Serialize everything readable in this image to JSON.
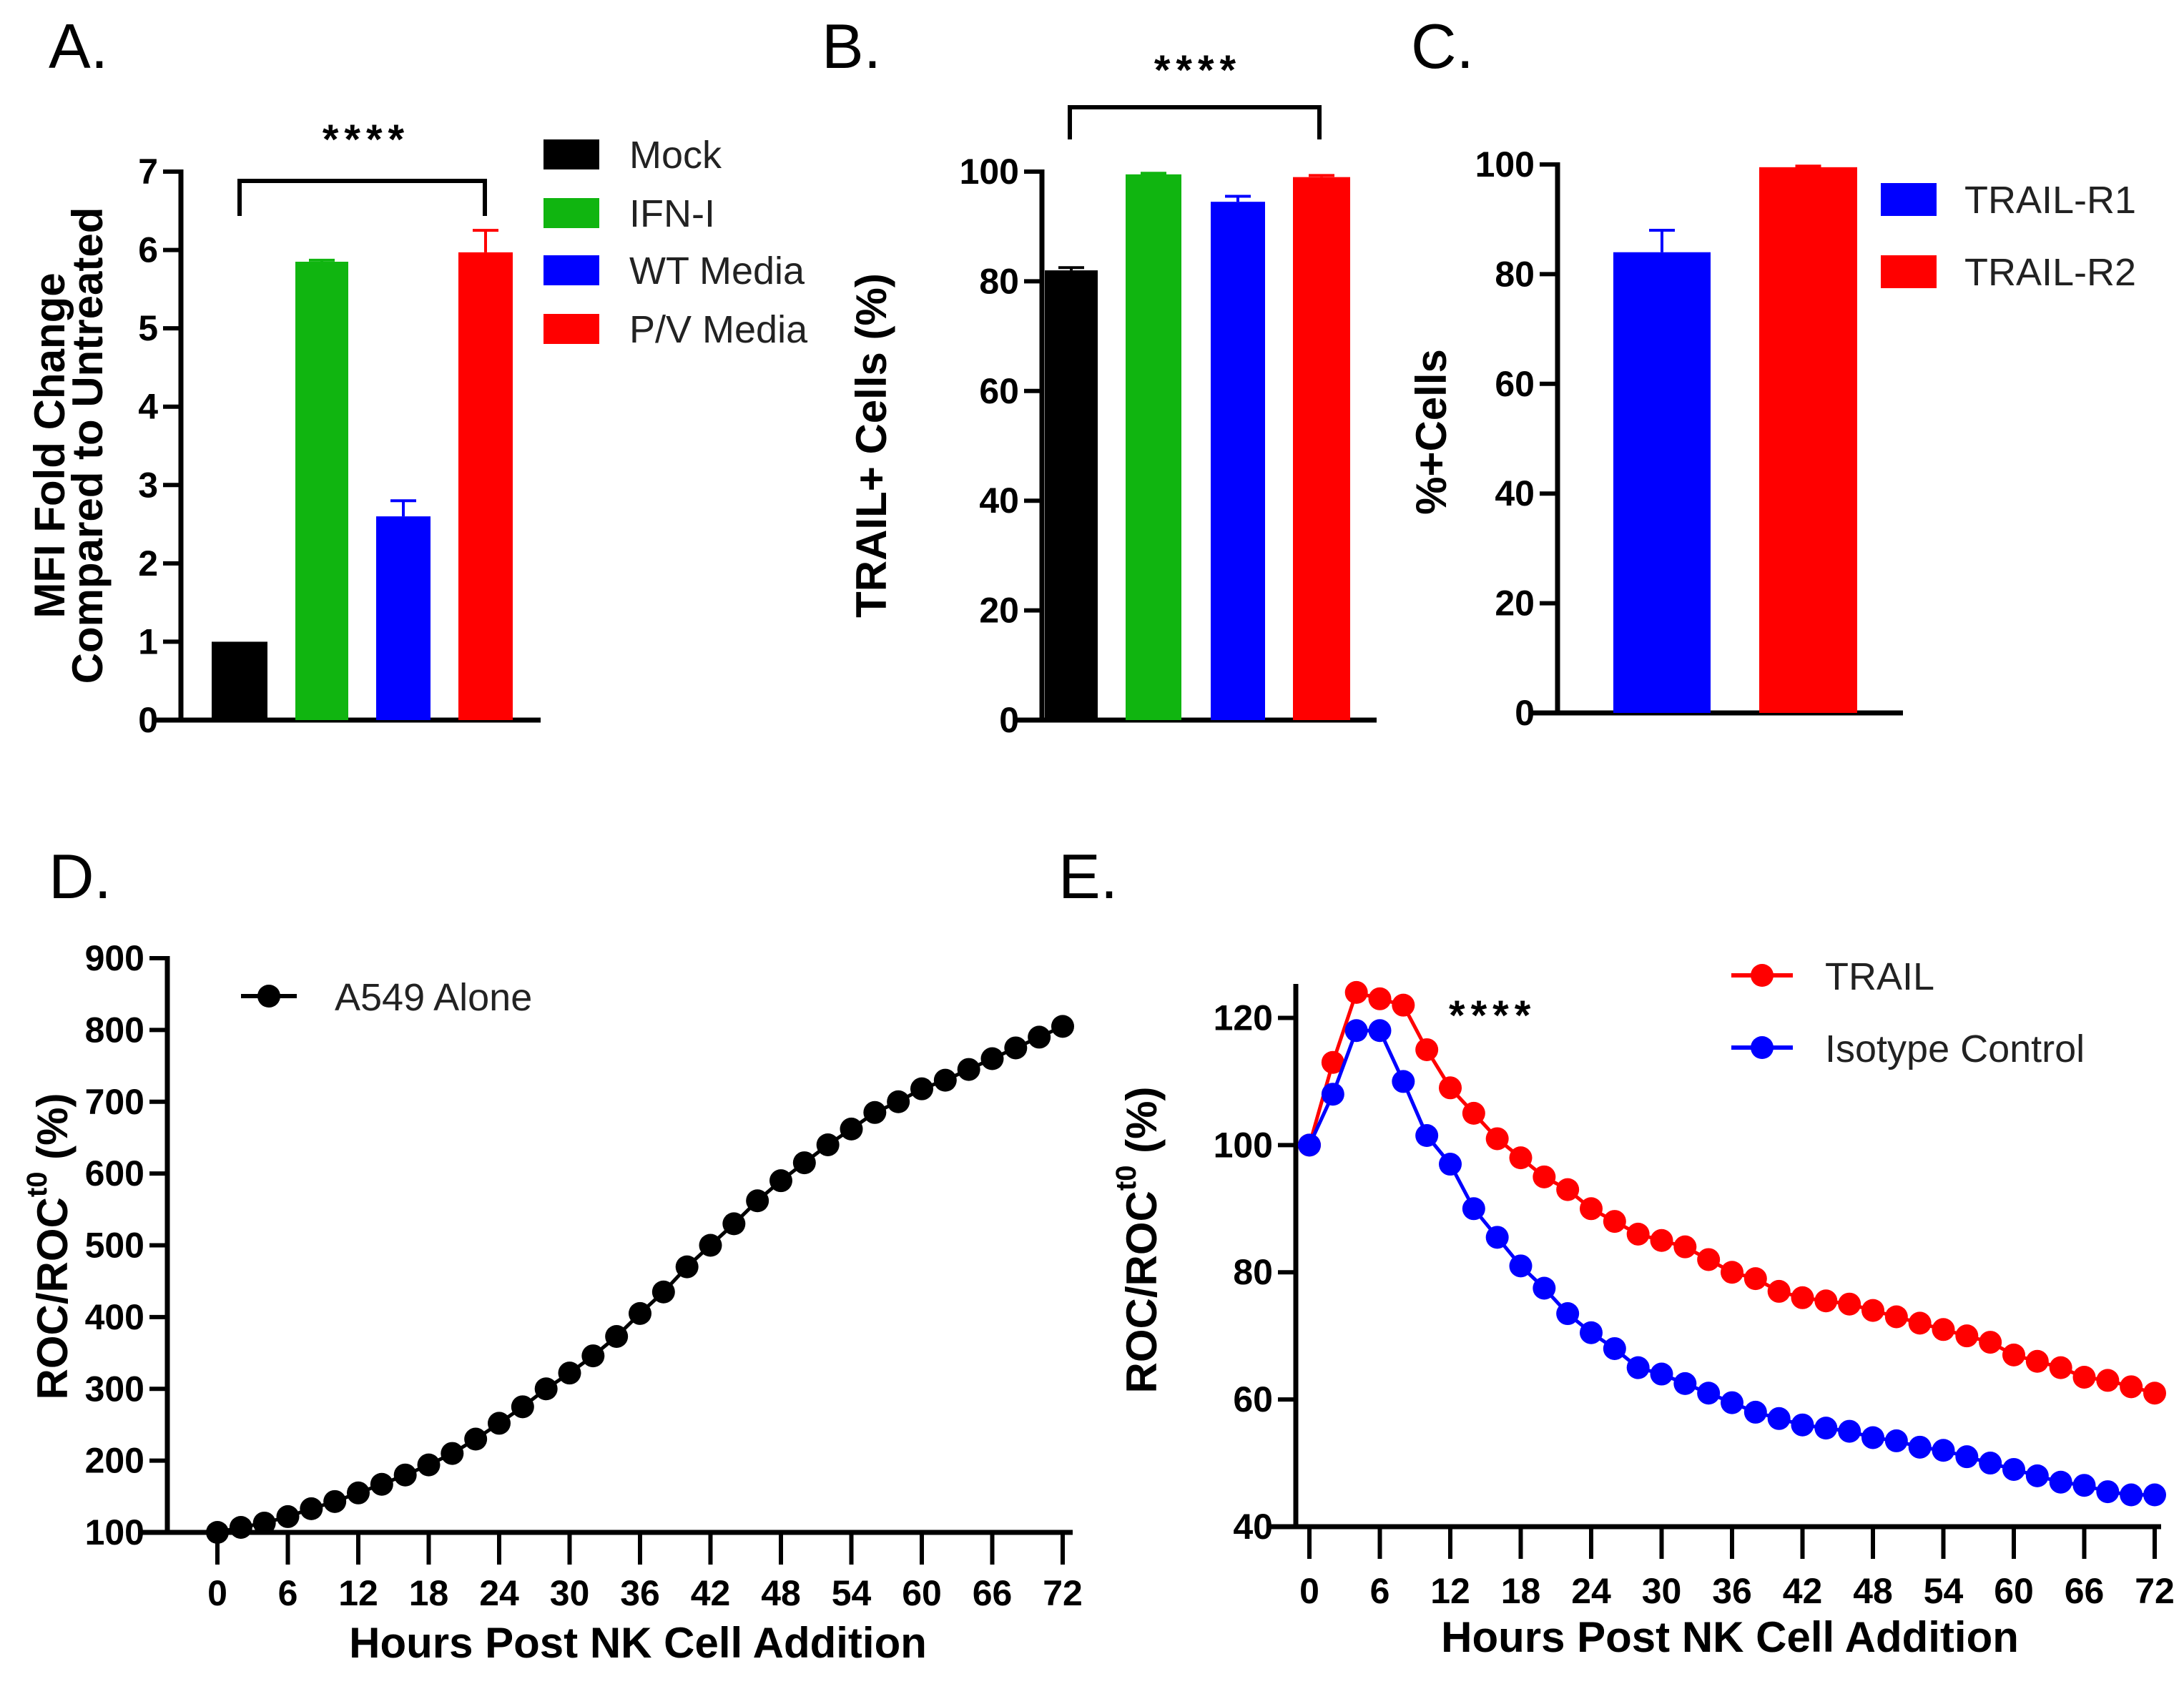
{
  "chart_data": [
    {
      "panel": "A.",
      "type": "bar",
      "categories": [
        "Mock",
        "IFN-I",
        "WT Media",
        "P/V Media"
      ],
      "values": [
        1.0,
        5.85,
        2.6,
        5.97
      ],
      "errors": [
        0,
        0.02,
        0.2,
        0.28
      ],
      "colors": [
        "#000000",
        "#10b510",
        "#0000ff",
        "#ff0000"
      ],
      "ylabel": [
        "MFI Fold Change",
        "Compared to Untreated"
      ],
      "ylim": [
        0,
        7
      ],
      "yticks": [
        "0",
        "1",
        "2",
        "3",
        "4",
        "5",
        "6",
        "7"
      ],
      "significance": {
        "label": "****",
        "from": "Mock",
        "to": "P/V Media"
      },
      "legend": {
        "placement": "right",
        "entries": [
          "Mock",
          "IFN-I",
          "WT Media",
          "P/V Media"
        ]
      }
    },
    {
      "panel": "B.",
      "type": "bar",
      "categories": [
        "Mock",
        "IFN-I",
        "WT Media",
        "P/V Media"
      ],
      "values": [
        82,
        99.5,
        94.5,
        99
      ],
      "errors": [
        0.5,
        0.2,
        1.0,
        0.3
      ],
      "colors": [
        "#000000",
        "#10b510",
        "#0000ff",
        "#ff0000"
      ],
      "ylabel": "TRAIL+ Cells (%)",
      "ylim": [
        0,
        100
      ],
      "yticks": [
        "0",
        "20",
        "40",
        "60",
        "80",
        "100"
      ],
      "significance": {
        "label": "****",
        "from": "Mock",
        "to": "P/V Media"
      }
    },
    {
      "panel": "C.",
      "type": "bar",
      "categories": [
        "TRAIL-R1",
        "TRAIL-R2"
      ],
      "values": [
        84,
        99.5
      ],
      "errors": [
        4,
        0.2
      ],
      "colors": [
        "#0000ff",
        "#ff0000"
      ],
      "ylabel": "%+Cells",
      "ylim": [
        0,
        100
      ],
      "yticks": [
        "0",
        "20",
        "40",
        "60",
        "80",
        "100"
      ],
      "legend": {
        "placement": "top-right",
        "entries": [
          "TRAIL-R1",
          "TRAIL-R2"
        ]
      }
    },
    {
      "panel": "D.",
      "type": "line",
      "xlabel": "Hours Post NK Cell Addition",
      "ylabel": "ROC/ROC",
      "ylabel_sup": "t0",
      "ylabel_suffix": " (%)",
      "xlim": [
        0,
        72
      ],
      "ylim": [
        100,
        900
      ],
      "xticks": [
        "0",
        "6",
        "12",
        "18",
        "24",
        "30",
        "36",
        "42",
        "48",
        "54",
        "60",
        "66",
        "72"
      ],
      "yticks": [
        "100",
        "200",
        "300",
        "400",
        "500",
        "600",
        "700",
        "800",
        "900"
      ],
      "x_step": 2,
      "series": [
        {
          "name": "A549 Alone",
          "color": "#000000",
          "values": [
            100,
            107,
            113,
            122,
            133,
            143,
            155,
            167,
            180,
            194,
            210,
            230,
            252,
            275,
            300,
            322,
            346,
            373,
            405,
            435,
            470,
            500,
            530,
            562,
            590,
            615,
            640,
            662,
            685,
            700,
            718,
            730,
            745,
            760,
            775,
            790,
            805
          ]
        }
      ],
      "legend": {
        "placement": "top-left"
      }
    },
    {
      "panel": "E.",
      "type": "line",
      "xlabel": "Hours Post NK Cell Addition",
      "ylabel": "ROC/ROC",
      "ylabel_sup": "t0",
      "ylabel_suffix": " (%)",
      "xlim": [
        0,
        72
      ],
      "ylim": [
        40,
        125
      ],
      "xticks": [
        "0",
        "6",
        "12",
        "18",
        "24",
        "30",
        "36",
        "42",
        "48",
        "54",
        "60",
        "66",
        "72"
      ],
      "yticks": [
        "40",
        "60",
        "80",
        "100",
        "120"
      ],
      "x_step": 2,
      "annotation": "****",
      "series": [
        {
          "name": "TRAIL",
          "color": "#ff0000",
          "values": [
            100,
            113,
            124,
            123,
            122,
            115,
            109,
            105,
            101,
            98,
            95,
            93,
            90,
            88,
            86,
            85,
            84,
            82,
            80,
            79,
            77,
            76,
            75.5,
            75,
            74,
            73,
            72,
            71,
            70,
            69,
            67,
            66,
            65,
            63.5,
            63,
            62,
            61
          ]
        },
        {
          "name": "Isotype Control",
          "color": "#0000ff",
          "values": [
            100,
            108,
            118,
            118,
            110,
            101.5,
            97,
            90,
            85.5,
            81,
            77.5,
            73.5,
            70.5,
            68,
            65,
            64,
            62.5,
            61,
            59.5,
            58,
            57,
            56,
            55.5,
            55,
            54,
            53.5,
            52.5,
            52,
            51,
            50,
            49,
            48,
            47,
            46.5,
            45.5,
            45,
            45
          ]
        }
      ],
      "legend": {
        "placement": "top-right"
      }
    }
  ]
}
